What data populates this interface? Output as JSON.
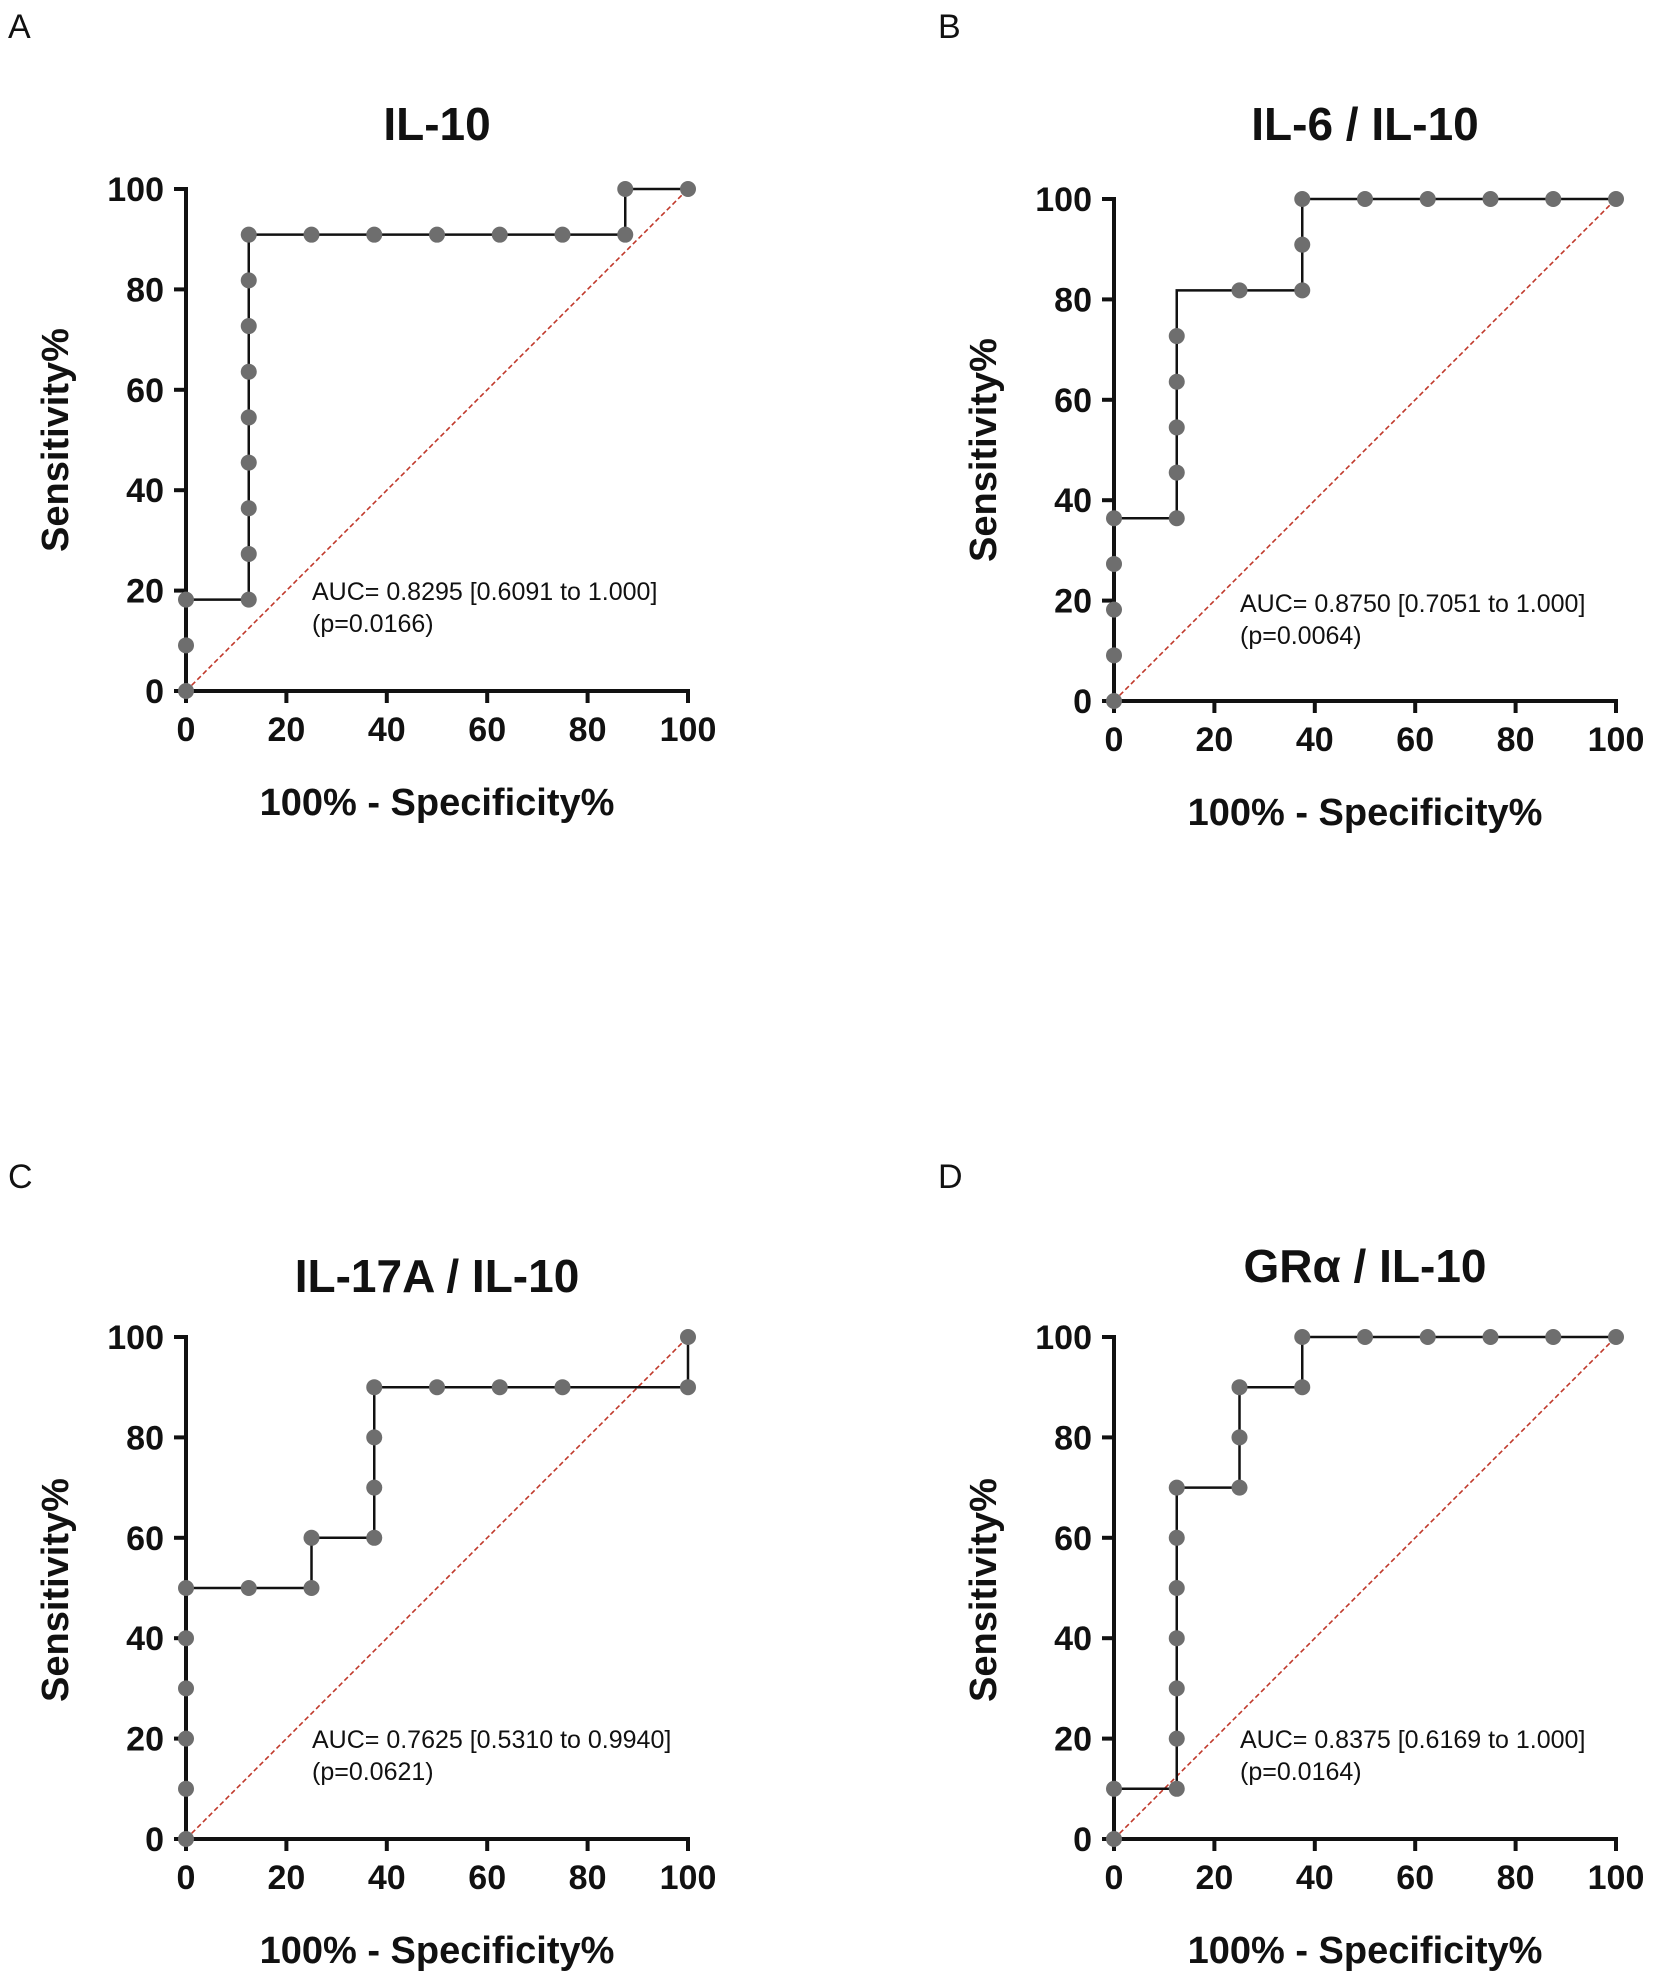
{
  "figure": {
    "panels": [
      "A",
      "B",
      "C",
      "D"
    ],
    "colors": {
      "points": "#6e6e6e",
      "roc_line": "#111111",
      "reference_line": "#c0392b"
    }
  },
  "chart_data": [
    {
      "panel": "A",
      "type": "line",
      "title": "IL-10",
      "xlabel": "100% - Specificity%",
      "ylabel": "Sensitivity%",
      "xlim": [
        0,
        100
      ],
      "ylim": [
        0,
        100
      ],
      "xticks": [
        "0",
        "20",
        "40",
        "60",
        "80",
        "100"
      ],
      "yticks": [
        "0",
        "20",
        "40",
        "60",
        "80",
        "100"
      ],
      "auc_text": "AUC= 0.8295 [0.6091 to 1.000]",
      "p_text": "(p=0.0166)",
      "x": [
        0,
        0,
        0,
        12.5,
        12.5,
        12.5,
        12.5,
        12.5,
        12.5,
        12.5,
        12.5,
        12.5,
        25,
        37.5,
        50,
        62.5,
        75,
        87.5,
        87.5,
        100
      ],
      "y": [
        0,
        9.1,
        18.2,
        18.2,
        27.3,
        36.4,
        45.5,
        54.5,
        63.6,
        72.7,
        81.8,
        90.9,
        90.9,
        90.9,
        90.9,
        90.9,
        90.9,
        90.9,
        100,
        100
      ]
    },
    {
      "panel": "B",
      "type": "line",
      "title": "IL-6 / IL-10",
      "xlabel": "100% - Specificity%",
      "ylabel": "Sensitivity%",
      "xlim": [
        0,
        100
      ],
      "ylim": [
        0,
        100
      ],
      "xticks": [
        "0",
        "20",
        "40",
        "60",
        "80",
        "100"
      ],
      "yticks": [
        "0",
        "20",
        "40",
        "60",
        "80",
        "100"
      ],
      "auc_text": "AUC= 0.8750 [0.7051 to 1.000]",
      "p_text": "(p=0.0064)",
      "x": [
        0,
        0,
        0,
        0,
        0,
        12.5,
        12.5,
        12.5,
        12.5,
        12.5,
        25,
        37.5,
        37.5,
        37.5,
        50,
        62.5,
        75,
        87.5,
        100
      ],
      "y": [
        0,
        9.1,
        18.2,
        27.3,
        36.4,
        36.4,
        45.5,
        54.5,
        63.6,
        72.7,
        81.8,
        81.8,
        90.9,
        100,
        100,
        100,
        100,
        100,
        100
      ],
      "extra_line_points": [
        [
          12.5,
          81.8
        ]
      ]
    },
    {
      "panel": "C",
      "type": "line",
      "title": "IL-17A / IL-10",
      "xlabel": "100% - Specificity%",
      "ylabel": "Sensitivity%",
      "xlim": [
        0,
        100
      ],
      "ylim": [
        0,
        100
      ],
      "xticks": [
        "0",
        "20",
        "40",
        "60",
        "80",
        "100"
      ],
      "yticks": [
        "0",
        "20",
        "40",
        "60",
        "80",
        "100"
      ],
      "auc_text": "AUC= 0.7625 [0.5310 to 0.9940]",
      "p_text": "(p=0.0621)",
      "x": [
        0,
        0,
        0,
        0,
        0,
        0,
        12.5,
        25,
        25,
        37.5,
        37.5,
        37.5,
        37.5,
        50,
        62.5,
        75,
        100,
        100
      ],
      "y": [
        0,
        10,
        20,
        30,
        40,
        50,
        50,
        50,
        60,
        60,
        70,
        80,
        90,
        90,
        90,
        90,
        90,
        100
      ]
    },
    {
      "panel": "D",
      "type": "line",
      "title": "GRα / IL-10",
      "xlabel": "100% - Specificity%",
      "ylabel": "Sensitivity%",
      "xlim": [
        0,
        100
      ],
      "ylim": [
        0,
        100
      ],
      "xticks": [
        "0",
        "20",
        "40",
        "60",
        "80",
        "100"
      ],
      "yticks": [
        "0",
        "20",
        "40",
        "60",
        "80",
        "100"
      ],
      "auc_text": "AUC= 0.8375 [0.6169 to 1.000]",
      "p_text": "(p=0.0164)",
      "x": [
        0,
        0,
        12.5,
        12.5,
        12.5,
        12.5,
        12.5,
        12.5,
        12.5,
        25,
        25,
        25,
        37.5,
        37.5,
        50,
        62.5,
        75,
        87.5,
        100
      ],
      "y": [
        0,
        10,
        10,
        20,
        30,
        40,
        50,
        60,
        70,
        70,
        80,
        90,
        90,
        100,
        100,
        100,
        100,
        100,
        100
      ]
    }
  ]
}
